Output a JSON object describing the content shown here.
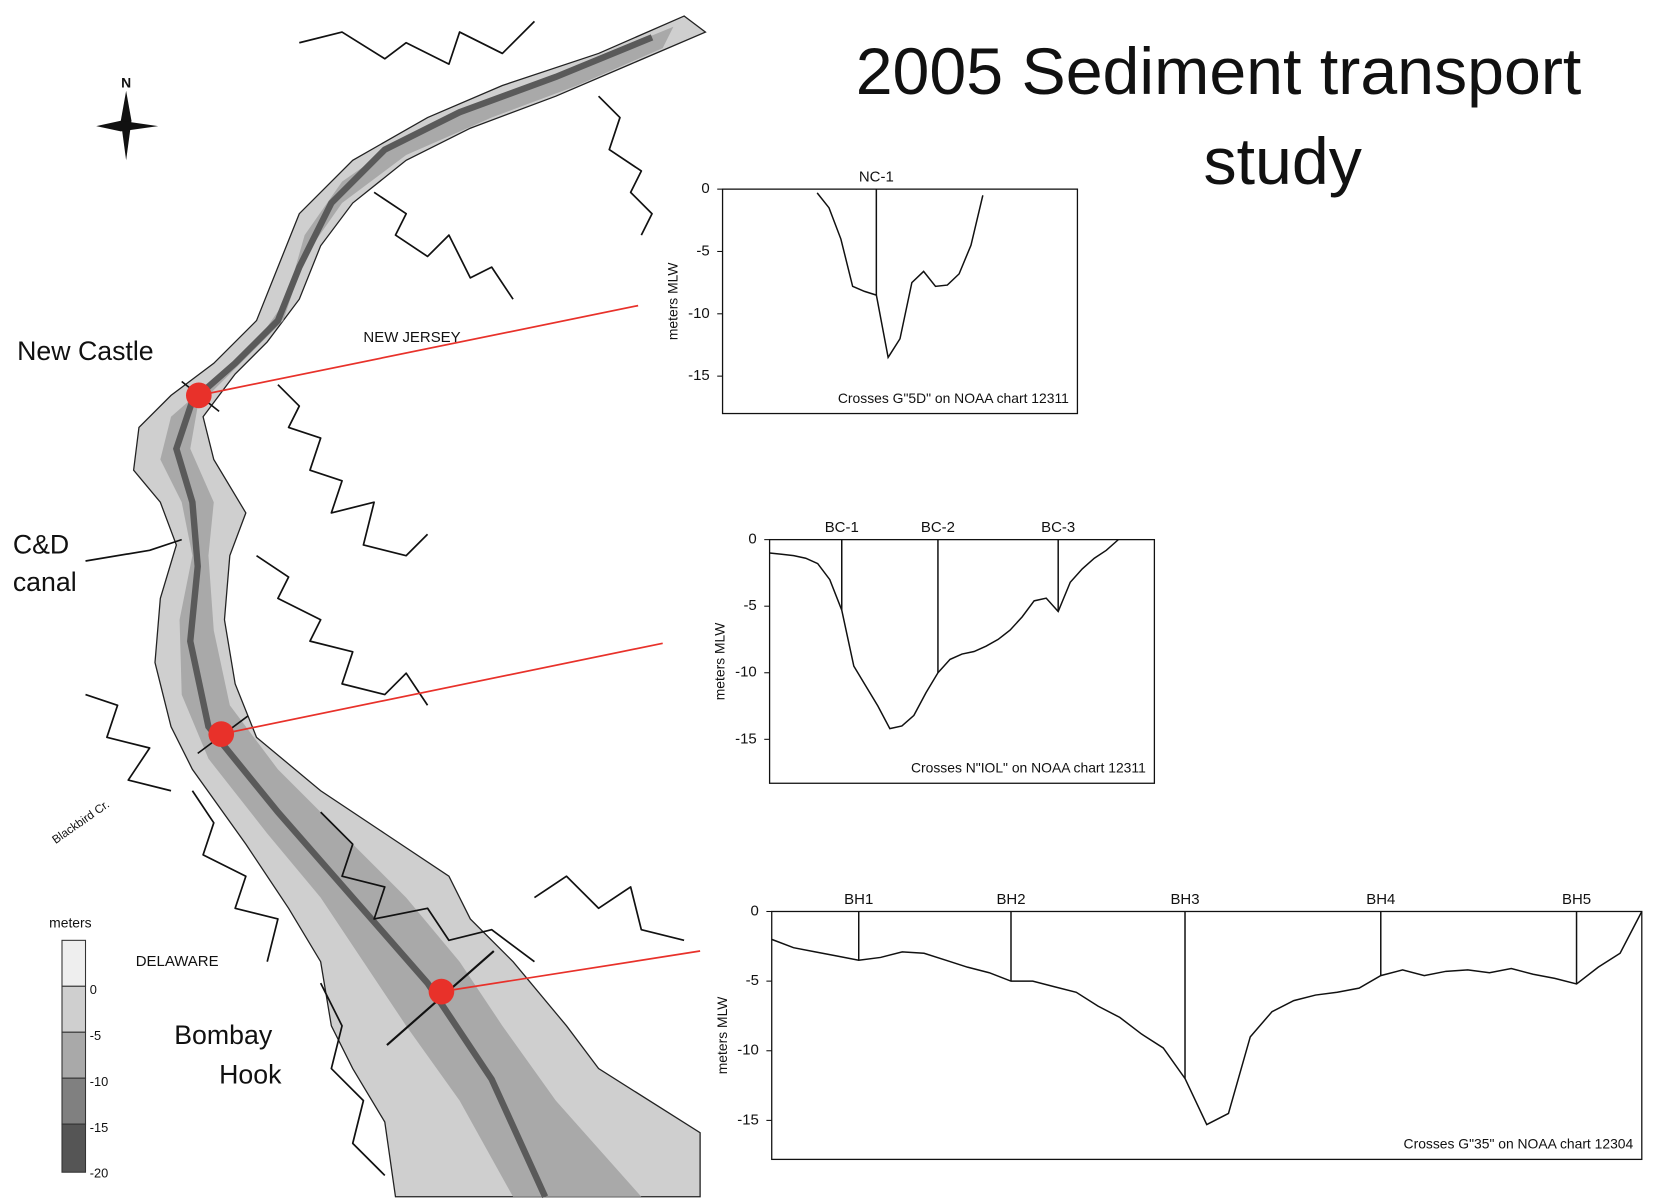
{
  "title": [
    "2005 Sediment transport",
    "study"
  ],
  "map": {
    "north": "N",
    "labels": {
      "new_castle": "New Castle",
      "cd_canal": [
        "C&D",
        "canal"
      ],
      "new_jersey": "NEW JERSEY",
      "delaware": "DELAWARE",
      "bombay_hook": [
        "Bombay",
        "Hook"
      ],
      "blackbird": "Blackbird Cr."
    },
    "legend": {
      "title": "meters",
      "ticks": [
        0,
        -5,
        -10,
        -15,
        -20
      ]
    }
  },
  "chart_data": [
    {
      "type": "line",
      "ylabel": "meters MLW",
      "caption": "Crosses G\"5D\" on NOAA chart 12311",
      "categories": [
        null,
        null,
        null,
        null,
        null,
        null,
        null,
        null,
        null,
        null,
        null,
        null,
        null,
        "NC-1",
        null,
        null,
        null,
        null,
        null,
        null,
        null,
        null,
        null,
        null,
        null,
        null,
        null,
        null,
        null,
        null,
        null
      ],
      "values": [
        null,
        null,
        null,
        null,
        null,
        null,
        null,
        null,
        -0.3,
        -1.5,
        -4,
        -7.8,
        -8.2,
        -8.5,
        -13.5,
        -12,
        -7.5,
        -6.6,
        -7.8,
        -7.7,
        -6.8,
        -4.5,
        -0.5,
        null,
        null,
        null,
        null,
        null,
        null,
        null,
        null
      ],
      "color": "#111111",
      "ylim": [
        -18,
        0
      ],
      "yticks": [
        0,
        -5,
        -10,
        -15
      ]
    },
    {
      "type": "line",
      "ylabel": "meters MLW",
      "caption": "Crosses N\"IOL\" on NOAA chart 12311",
      "categories": [
        null,
        null,
        null,
        null,
        null,
        null,
        "BC-1",
        null,
        null,
        null,
        null,
        null,
        null,
        null,
        "BC-2",
        null,
        null,
        null,
        null,
        null,
        null,
        null,
        null,
        null,
        "BC-3",
        null,
        null,
        null,
        null,
        null,
        null,
        null,
        null
      ],
      "values": [
        -1,
        -1.1,
        -1.2,
        -1.4,
        -1.8,
        -3,
        -5.3,
        -9.5,
        -11,
        -12.5,
        -14.2,
        -14,
        -13.2,
        -11.5,
        -10,
        -9,
        -8.6,
        -8.4,
        -8,
        -7.5,
        -6.8,
        -5.8,
        -4.6,
        -4.4,
        -5.4,
        -3.2,
        -2.2,
        -1.4,
        -0.8,
        0,
        null,
        null,
        null
      ],
      "color": "#111111",
      "ylim": [
        -18.3,
        0
      ],
      "yticks": [
        0,
        -5,
        -10,
        -15
      ]
    },
    {
      "type": "line",
      "ylabel": "meters MLW",
      "caption": "Crosses G\"35\" on NOAA chart 12304",
      "categories": [
        null,
        null,
        null,
        null,
        "BH1",
        null,
        null,
        null,
        null,
        null,
        null,
        "BH2",
        null,
        null,
        null,
        null,
        null,
        null,
        null,
        "BH3",
        null,
        null,
        null,
        null,
        null,
        null,
        null,
        null,
        "BH4",
        null,
        null,
        null,
        null,
        null,
        null,
        null,
        null,
        "BH5",
        null,
        null,
        null
      ],
      "values": [
        -2,
        -2.6,
        -2.9,
        -3.2,
        -3.5,
        -3.3,
        -2.9,
        -3,
        -3.5,
        -4,
        -4.4,
        -5,
        -5,
        -5.4,
        -5.8,
        -6.8,
        -7.6,
        -8.8,
        -9.8,
        -12,
        -15.3,
        -14.5,
        -9,
        -7.2,
        -6.4,
        -6,
        -5.8,
        -5.5,
        -4.6,
        -4.2,
        -4.6,
        -4.3,
        -4.2,
        -4.4,
        -4.1,
        -4.5,
        -4.8,
        -5.2,
        -4,
        -3,
        0
      ],
      "color": "#111111",
      "ylim": [
        -17.8,
        0
      ],
      "yticks": [
        0,
        -5,
        -10,
        -15
      ]
    }
  ]
}
